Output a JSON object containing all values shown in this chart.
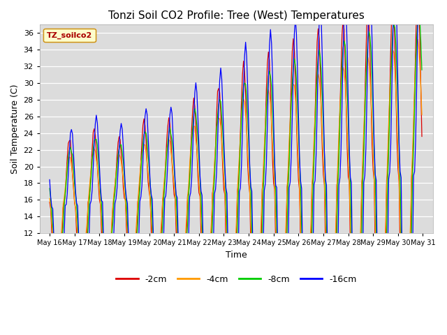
{
  "title": "Tonzi Soil CO2 Profile: Tree (West) Temperatures",
  "xlabel": "Time",
  "ylabel": "Soil Temperature (C)",
  "ylim": [
    12,
    37
  ],
  "yticks": [
    12,
    14,
    16,
    18,
    20,
    22,
    24,
    26,
    28,
    30,
    32,
    34,
    36
  ],
  "bg_color": "#dcdcdc",
  "fig_color": "#ffffff",
  "legend_label": "TZ_soilco2",
  "series_labels": [
    "-2cm",
    "-4cm",
    "-8cm",
    "-16cm"
  ],
  "series_colors": [
    "#dd0000",
    "#ff9900",
    "#00cc00",
    "#0000ff"
  ],
  "xlim_left": 15.6,
  "xlim_right": 31.4,
  "x_tick_days": [
    16,
    17,
    18,
    19,
    20,
    21,
    22,
    23,
    24,
    25,
    26,
    27,
    28,
    29,
    30,
    31
  ]
}
